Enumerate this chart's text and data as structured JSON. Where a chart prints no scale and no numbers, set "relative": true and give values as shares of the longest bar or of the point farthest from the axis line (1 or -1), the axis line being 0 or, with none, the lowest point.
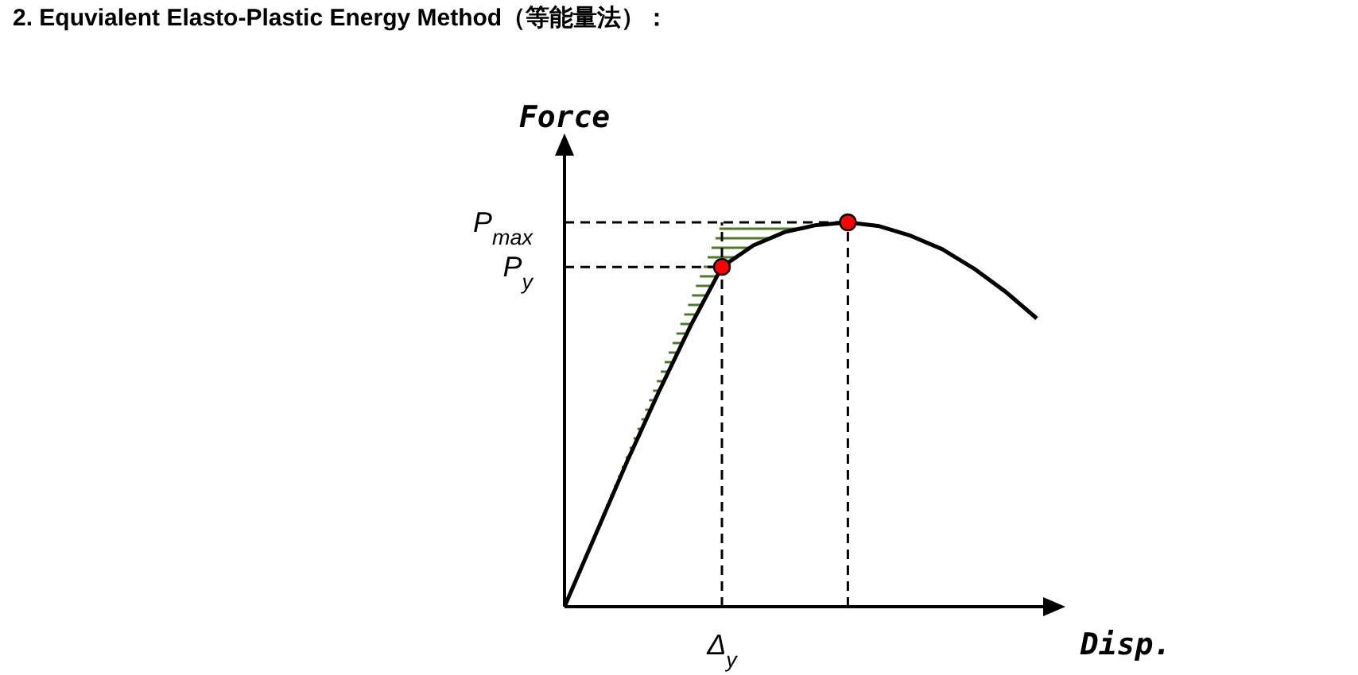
{
  "chart_data": {
    "type": "line",
    "title": "2.    Equvialent Elasto-Plastic Energy Method（等能量法）：",
    "xlabel": "Disp.",
    "ylabel": "Force",
    "relative": true,
    "categories": [
      null,
      null,
      null,
      null,
      null,
      null,
      null,
      null,
      null,
      null,
      null,
      null,
      null,
      null,
      null,
      null
    ],
    "series": [
      {
        "color": "#000000",
        "values": [
          0,
          0.19,
          0.38,
          0.56,
          0.73,
          0.884,
          0.94,
          0.975,
          0.993,
          1,
          0.99,
          0.965,
          0.93,
          0.88,
          0.82,
          0.75
        ]
      }
    ],
    "ref_lines": [
      {
        "axis": "y",
        "value": 1,
        "label": "P$_{max}$",
        "line_style": "dashed"
      },
      {
        "axis": "y",
        "value": 0.884,
        "label": "P$_{y}$",
        "line_style": "dashed"
      }
    ],
    "annotations": [
      "Δ$_{y}$"
    ]
  }
}
